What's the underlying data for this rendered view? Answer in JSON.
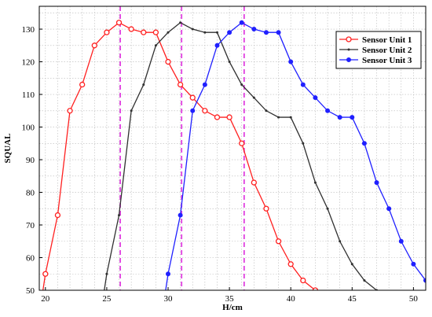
{
  "chart_data": {
    "type": "line",
    "xlabel": "H/cm",
    "ylabel": "SQUAL",
    "xlim": [
      19.5,
      51
    ],
    "ylim": [
      50,
      137
    ],
    "x_ticks": [
      20,
      25,
      30,
      35,
      40,
      45,
      50
    ],
    "y_ticks": [
      50,
      60,
      70,
      80,
      90,
      100,
      110,
      120,
      130
    ],
    "x_minor_step": 1,
    "y_minor_step": 5,
    "grid": true,
    "legend_position": "top-right",
    "vertical_reference_lines": {
      "x": [
        26.1,
        31.1,
        36.2
      ],
      "color": "#e040e0",
      "style": "dashed"
    },
    "series": [
      {
        "name": "Sensor Unit 1",
        "color": "#ff2020",
        "marker": "circle-open",
        "points": [
          [
            19.8,
            50
          ],
          [
            20,
            55
          ],
          [
            21,
            73
          ],
          [
            22,
            105
          ],
          [
            23,
            113
          ],
          [
            24,
            125
          ],
          [
            25,
            129
          ],
          [
            26,
            132
          ],
          [
            27,
            130
          ],
          [
            28,
            129
          ],
          [
            29,
            129
          ],
          [
            30,
            120
          ],
          [
            31,
            113
          ],
          [
            32,
            109
          ],
          [
            33,
            105
          ],
          [
            34,
            103
          ],
          [
            35,
            103
          ],
          [
            36,
            95
          ],
          [
            37,
            83
          ],
          [
            38,
            75
          ],
          [
            39,
            65
          ],
          [
            40,
            58
          ],
          [
            41,
            53
          ],
          [
            42,
            50
          ]
        ]
      },
      {
        "name": "Sensor Unit 2",
        "color": "#303030",
        "marker": "dot",
        "points": [
          [
            24.8,
            50
          ],
          [
            25,
            55
          ],
          [
            26,
            73
          ],
          [
            27,
            105
          ],
          [
            28,
            113
          ],
          [
            29,
            125
          ],
          [
            30,
            129
          ],
          [
            31,
            132
          ],
          [
            32,
            130
          ],
          [
            33,
            129
          ],
          [
            34,
            129
          ],
          [
            35,
            120
          ],
          [
            36,
            113
          ],
          [
            37,
            109
          ],
          [
            38,
            105
          ],
          [
            39,
            103
          ],
          [
            40,
            103
          ],
          [
            41,
            95
          ],
          [
            42,
            83
          ],
          [
            43,
            75
          ],
          [
            44,
            65
          ],
          [
            45,
            58
          ],
          [
            46,
            53
          ],
          [
            47,
            50
          ]
        ]
      },
      {
        "name": "Sensor Unit 3",
        "color": "#2020ff",
        "marker": "circle-filled",
        "points": [
          [
            29.8,
            50
          ],
          [
            30,
            55
          ],
          [
            31,
            73
          ],
          [
            32,
            105
          ],
          [
            33,
            113
          ],
          [
            34,
            125
          ],
          [
            35,
            129
          ],
          [
            36,
            132
          ],
          [
            37,
            130
          ],
          [
            38,
            129
          ],
          [
            39,
            129
          ],
          [
            40,
            120
          ],
          [
            41,
            113
          ],
          [
            42,
            109
          ],
          [
            43,
            105
          ],
          [
            44,
            103
          ],
          [
            45,
            103
          ],
          [
            46,
            95
          ],
          [
            47,
            83
          ],
          [
            48,
            75
          ],
          [
            49,
            65
          ],
          [
            50,
            58
          ],
          [
            51,
            53
          ]
        ]
      }
    ]
  }
}
